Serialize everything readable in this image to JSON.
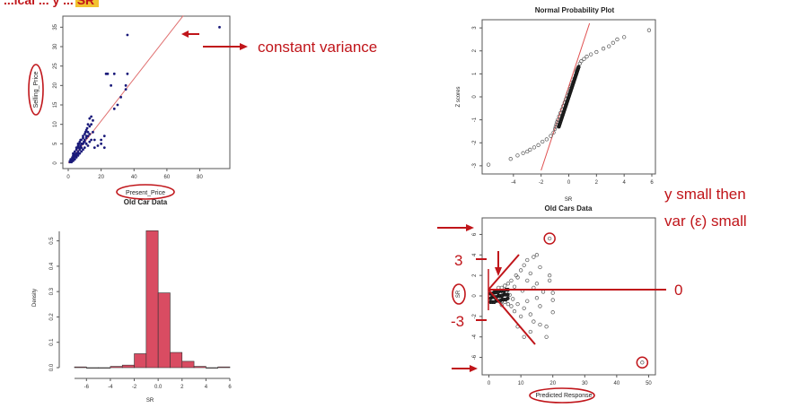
{
  "slide": {
    "header_fragment": "...ical ... y ... SR",
    "annotations": {
      "constant_variance": "constant variance",
      "y_small_line1": "y small then",
      "y_small_line2": "var (ε) small",
      "label_3": "3",
      "label_minus3": "-3",
      "label_0": "0"
    },
    "colors": {
      "annotation_red": "#c0151a",
      "highlight_yellow": "#f2c230",
      "scatter_blue": "#1a1a7a",
      "hist_fill": "#d94c62",
      "line_red": "#e07070"
    }
  },
  "chart_data": [
    {
      "id": "scatter",
      "type": "scatter",
      "title": "Old Car Data",
      "xlabel": "Present_Price",
      "ylabel": "Selling_Price",
      "xlim": [
        0,
        95
      ],
      "ylim": [
        0,
        36
      ],
      "xticks": [
        0,
        20,
        40,
        60,
        80
      ],
      "yticks": [
        0,
        5,
        10,
        15,
        20,
        25,
        30,
        35
      ],
      "trend_line": [
        [
          0,
          0
        ],
        [
          70,
          38
        ]
      ],
      "points": [
        [
          1,
          0.5
        ],
        [
          1.5,
          1
        ],
        [
          2,
          0.8
        ],
        [
          2.5,
          1.5
        ],
        [
          3,
          1.2
        ],
        [
          3,
          2
        ],
        [
          3.5,
          2.5
        ],
        [
          4,
          1.8
        ],
        [
          4,
          3
        ],
        [
          4.5,
          2.2
        ],
        [
          5,
          3.5
        ],
        [
          5,
          2.5
        ],
        [
          5.5,
          4
        ],
        [
          6,
          3
        ],
        [
          6,
          4.5
        ],
        [
          6.5,
          5
        ],
        [
          7,
          3.5
        ],
        [
          7,
          5.5
        ],
        [
          7.5,
          4.5
        ],
        [
          8,
          6
        ],
        [
          8,
          4
        ],
        [
          8.5,
          5
        ],
        [
          9,
          6.5
        ],
        [
          9,
          7
        ],
        [
          9.5,
          5.5
        ],
        [
          10,
          7.5
        ],
        [
          10,
          6
        ],
        [
          10.5,
          8
        ],
        [
          11,
          8.5
        ],
        [
          11,
          6.5
        ],
        [
          11.5,
          9
        ],
        [
          12,
          7
        ],
        [
          12,
          10
        ],
        [
          13,
          9.5
        ],
        [
          13,
          11.5
        ],
        [
          14,
          10
        ],
        [
          14,
          12
        ],
        [
          15,
          11
        ],
        [
          15,
          8
        ],
        [
          16,
          6
        ],
        [
          2,
          0.3
        ],
        [
          3,
          0.6
        ],
        [
          4,
          1
        ],
        [
          5,
          1.5
        ],
        [
          6,
          2
        ],
        [
          7,
          2.5
        ],
        [
          8,
          3
        ],
        [
          9,
          3.5
        ],
        [
          10,
          4
        ],
        [
          11,
          5
        ],
        [
          12,
          4.5
        ],
        [
          13,
          5.5
        ],
        [
          14,
          6
        ],
        [
          4,
          2
        ],
        [
          5,
          2
        ],
        [
          6,
          2.5
        ],
        [
          3.5,
          1.4
        ],
        [
          6,
          5
        ],
        [
          8,
          5
        ],
        [
          9,
          5
        ],
        [
          7,
          4
        ],
        [
          10,
          5.5
        ],
        [
          11,
          7
        ],
        [
          12,
          8
        ],
        [
          13,
          7.5
        ],
        [
          16,
          4
        ],
        [
          18,
          4.5
        ],
        [
          20,
          6
        ],
        [
          20,
          5
        ],
        [
          22,
          7
        ],
        [
          22,
          4
        ],
        [
          23,
          23
        ],
        [
          24,
          23
        ],
        [
          26,
          20
        ],
        [
          28,
          23
        ],
        [
          28,
          14
        ],
        [
          30,
          15
        ],
        [
          32,
          17
        ],
        [
          35,
          20
        ],
        [
          35,
          19
        ],
        [
          36,
          33
        ],
        [
          36,
          23
        ],
        [
          92,
          35
        ],
        [
          2,
          0.6
        ],
        [
          1,
          0.3
        ],
        [
          2.5,
          1.2
        ],
        [
          3,
          2.5
        ],
        [
          5,
          4
        ],
        [
          6.5,
          4
        ],
        [
          7.5,
          6
        ]
      ]
    },
    {
      "id": "qq",
      "type": "scatter",
      "title": "Normal Probability Plot",
      "xlabel": "SR",
      "ylabel": "Z scores",
      "xlim": [
        -6,
        6
      ],
      "ylim": [
        -3.2,
        3.2
      ],
      "xticks": [
        -4,
        -2,
        0,
        2,
        4,
        6
      ],
      "yticks": [
        -3,
        -2,
        -1,
        0,
        1,
        2,
        3
      ],
      "ref_line": [
        [
          -2.0,
          -3.2
        ],
        [
          1.5,
          3.2
        ]
      ],
      "points": [
        [
          -5.8,
          -2.95
        ],
        [
          -4.2,
          -2.7
        ],
        [
          -3.7,
          -2.55
        ],
        [
          -3.3,
          -2.45
        ],
        [
          -3.0,
          -2.38
        ],
        [
          -2.8,
          -2.3
        ],
        [
          -2.5,
          -2.2
        ],
        [
          -2.2,
          -2.1
        ],
        [
          -1.9,
          -1.95
        ],
        [
          -1.6,
          -1.85
        ],
        [
          -1.3,
          -1.7
        ],
        [
          -1.1,
          -1.55
        ],
        [
          -1.0,
          -1.4
        ],
        [
          -0.95,
          -1.3
        ],
        [
          -0.9,
          -1.2
        ],
        [
          -0.85,
          -1.1
        ],
        [
          -0.8,
          -1.0
        ],
        [
          -0.7,
          -0.85
        ],
        [
          -0.6,
          -0.7
        ],
        [
          -0.5,
          -0.55
        ],
        [
          -0.4,
          -0.4
        ],
        [
          -0.3,
          -0.25
        ],
        [
          -0.2,
          -0.1
        ],
        [
          -0.1,
          0.05
        ],
        [
          0.0,
          0.2
        ],
        [
          0.1,
          0.35
        ],
        [
          0.2,
          0.5
        ],
        [
          0.3,
          0.65
        ],
        [
          0.4,
          0.8
        ],
        [
          0.5,
          0.95
        ],
        [
          0.55,
          1.1
        ],
        [
          0.6,
          1.2
        ],
        [
          0.7,
          1.3
        ],
        [
          0.8,
          1.45
        ],
        [
          0.9,
          1.55
        ],
        [
          1.1,
          1.65
        ],
        [
          1.3,
          1.75
        ],
        [
          1.6,
          1.85
        ],
        [
          2.0,
          1.95
        ],
        [
          2.5,
          2.1
        ],
        [
          2.9,
          2.2
        ],
        [
          3.2,
          2.35
        ],
        [
          3.5,
          2.5
        ],
        [
          4.0,
          2.6
        ],
        [
          5.8,
          2.9
        ]
      ]
    },
    {
      "id": "hist",
      "type": "bar",
      "xlabel": "SR",
      "ylabel": "Density",
      "xlim": [
        -7,
        6
      ],
      "ylim": [
        0,
        0.58
      ],
      "xticks": [
        -6,
        -4,
        -2,
        0,
        2,
        4,
        6
      ],
      "yticks": [
        0.0,
        0.1,
        0.2,
        0.3,
        0.4,
        0.5
      ],
      "bins": [
        {
          "from": -7,
          "to": -6,
          "value": 0.003
        },
        {
          "from": -6,
          "to": -5,
          "value": 0.0
        },
        {
          "from": -5,
          "to": -4,
          "value": 0.0
        },
        {
          "from": -4,
          "to": -3,
          "value": 0.005
        },
        {
          "from": -3,
          "to": -2,
          "value": 0.01
        },
        {
          "from": -2,
          "to": -1,
          "value": 0.055
        },
        {
          "from": -1,
          "to": 0,
          "value": 0.54
        },
        {
          "from": 0,
          "to": 1,
          "value": 0.295
        },
        {
          "from": 1,
          "to": 2,
          "value": 0.06
        },
        {
          "from": 2,
          "to": 3,
          "value": 0.025
        },
        {
          "from": 3,
          "to": 4,
          "value": 0.005
        },
        {
          "from": 4,
          "to": 5,
          "value": 0.0
        },
        {
          "from": 5,
          "to": 6,
          "value": 0.003
        }
      ]
    },
    {
      "id": "resid",
      "type": "scatter",
      "title": "Old Cars Data",
      "xlabel": "Predicted Response",
      "ylabel": "SR",
      "xlim": [
        -1,
        51
      ],
      "ylim": [
        -7,
        7
      ],
      "xticks": [
        0,
        10,
        20,
        30,
        40,
        50
      ],
      "yticks": [
        -6,
        -4,
        -2,
        0,
        2,
        4,
        6
      ],
      "points": [
        [
          0.5,
          0.2
        ],
        [
          1,
          -0.1
        ],
        [
          1.5,
          0.3
        ],
        [
          2,
          -0.2
        ],
        [
          2,
          0.4
        ],
        [
          2.5,
          0.1
        ],
        [
          3,
          -0.3
        ],
        [
          3,
          0.5
        ],
        [
          3.5,
          0.2
        ],
        [
          4,
          -0.5
        ],
        [
          4,
          0.8
        ],
        [
          4.5,
          0.3
        ],
        [
          5,
          -0.6
        ],
        [
          5,
          1.0
        ],
        [
          5.5,
          0.4
        ],
        [
          6,
          -0.8
        ],
        [
          6,
          1.2
        ],
        [
          6.5,
          0.1
        ],
        [
          7,
          -1.0
        ],
        [
          7,
          1.5
        ],
        [
          7.5,
          -0.3
        ],
        [
          8,
          0.9
        ],
        [
          8,
          -1.5
        ],
        [
          8.5,
          2.0
        ],
        [
          9,
          -0.8
        ],
        [
          9,
          1.8
        ],
        [
          10,
          -2.0
        ],
        [
          10,
          2.5
        ],
        [
          10.5,
          0.5
        ],
        [
          11,
          -1.2
        ],
        [
          11,
          3.0
        ],
        [
          12,
          -0.5
        ],
        [
          12,
          1.5
        ],
        [
          13,
          -1.8
        ],
        [
          13,
          2.2
        ],
        [
          14,
          -2.5
        ],
        [
          14,
          0.8
        ],
        [
          15,
          -0.2
        ],
        [
          15,
          1.2
        ],
        [
          16,
          2.8
        ],
        [
          16,
          -1.0
        ],
        [
          17,
          0.4
        ],
        [
          18,
          -3.0
        ],
        [
          19,
          1.5
        ],
        [
          19,
          2.0
        ],
        [
          20,
          0.3
        ],
        [
          20,
          -0.4
        ],
        [
          12,
          3.5
        ],
        [
          14,
          3.8
        ],
        [
          15,
          4.0
        ],
        [
          11,
          -4.0
        ],
        [
          13,
          -3.5
        ],
        [
          9,
          -3.0
        ],
        [
          16,
          -2.8
        ],
        [
          18,
          -4.0
        ],
        [
          19,
          5.6
        ],
        [
          20,
          -1.6
        ],
        [
          3,
          0.8
        ],
        [
          4,
          -0.9
        ],
        [
          6,
          0.6
        ],
        [
          48,
          -6.5
        ]
      ],
      "circled_points": [
        [
          19,
          5.6
        ],
        [
          48,
          -6.5
        ]
      ]
    }
  ]
}
